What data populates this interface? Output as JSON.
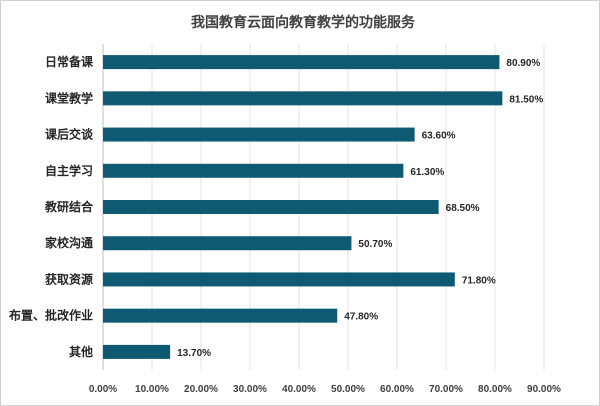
{
  "chart_data": {
    "type": "bar",
    "orientation": "horizontal",
    "title": "我国教育云面向教育教学的功能服务",
    "categories": [
      "日常备课",
      "课堂教学",
      "课后交谈",
      "自主学习",
      "教研结合",
      "家校沟通",
      "获取资源",
      "布置、批改作业",
      "其他"
    ],
    "values": [
      80.9,
      81.5,
      63.6,
      61.3,
      68.5,
      50.7,
      71.8,
      47.8,
      13.7
    ],
    "value_labels": [
      "80.90%",
      "81.50%",
      "63.60%",
      "61.30%",
      "68.50%",
      "50.70%",
      "71.80%",
      "47.80%",
      "13.70%"
    ],
    "x_ticks": [
      "0.00%",
      "10.00%",
      "20.00%",
      "30.00%",
      "40.00%",
      "50.00%",
      "60.00%",
      "70.00%",
      "80.00%",
      "90.00%"
    ],
    "xlim": [
      0,
      90
    ],
    "xlabel": "",
    "ylabel": "",
    "grid": true,
    "bar_color": "#0e5a73"
  }
}
